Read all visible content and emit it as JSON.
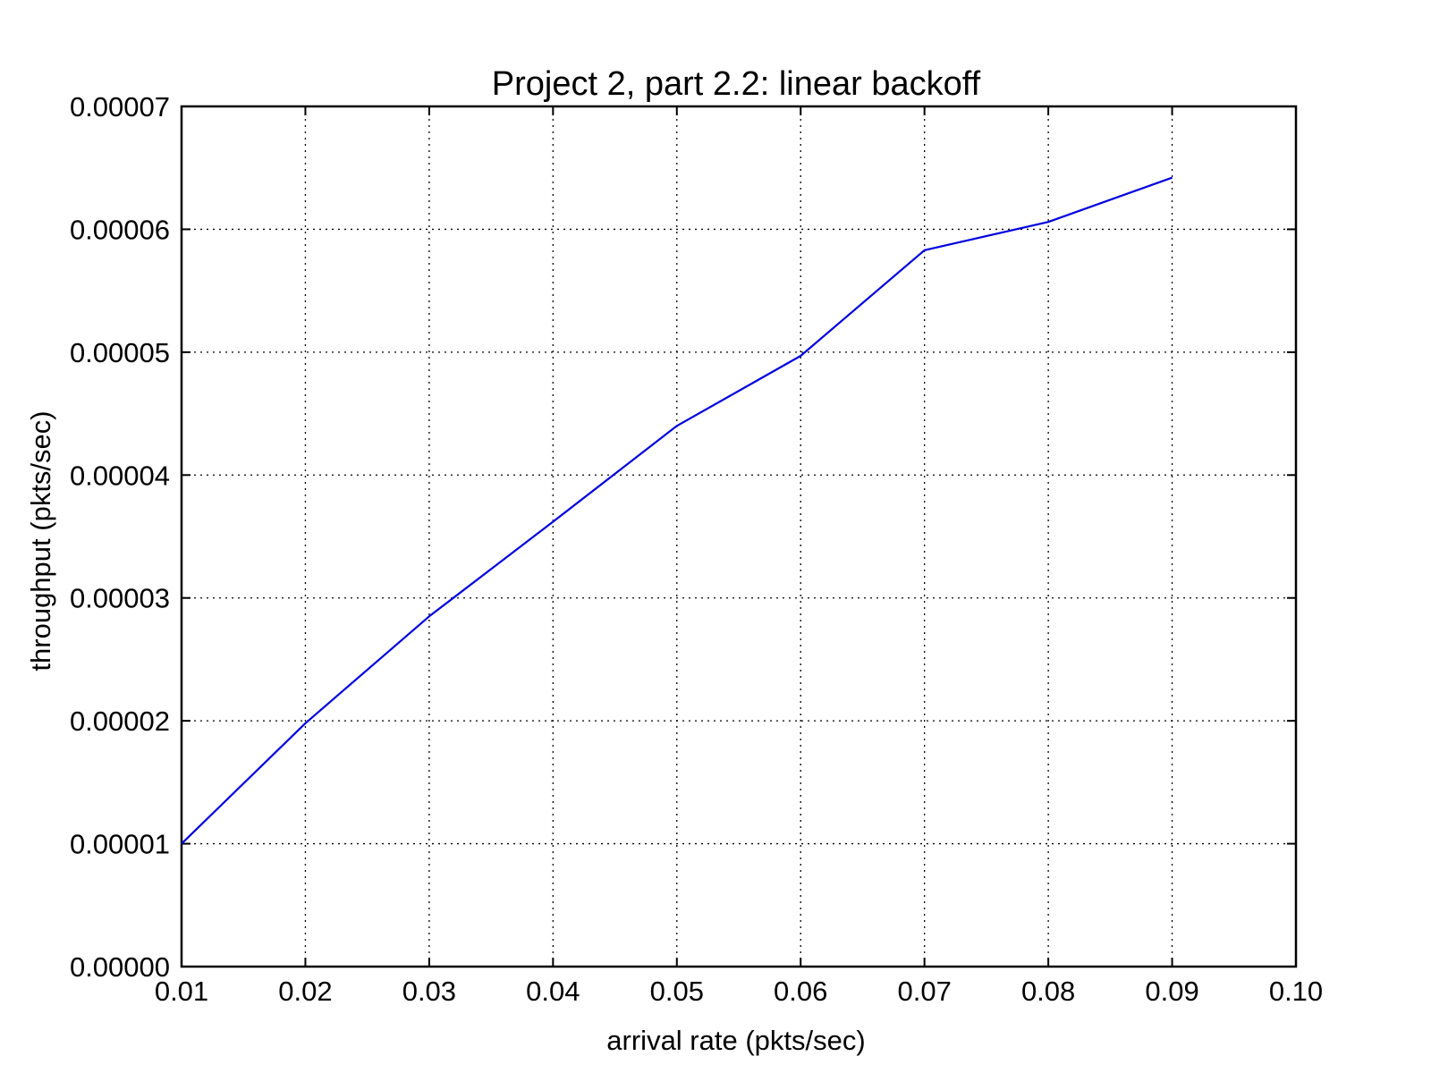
{
  "chart_data": {
    "type": "line",
    "title": "Project 2, part 2.2: linear backoff",
    "xlabel": "arrival rate (pkts/sec)",
    "ylabel": "throughput (pkts/sec)",
    "xlim": [
      0.01,
      0.1
    ],
    "ylim": [
      0.0,
      7e-05
    ],
    "x_ticks": [
      "0.01",
      "0.02",
      "0.03",
      "0.04",
      "0.05",
      "0.06",
      "0.07",
      "0.08",
      "0.09",
      "0.10"
    ],
    "y_ticks": [
      "0.00000",
      "0.00001",
      "0.00002",
      "0.00003",
      "0.00004",
      "0.00005",
      "0.00006",
      "0.00007"
    ],
    "grid": true,
    "line_color": "#0000dd",
    "series": [
      {
        "x": [
          0.01,
          0.02,
          0.03,
          0.04,
          0.05,
          0.06,
          0.07,
          0.08,
          0.09
        ],
        "values": [
          1e-05,
          1.98e-05,
          2.85e-05,
          3.62e-05,
          4.4e-05,
          4.97e-05,
          5.83e-05,
          6.06e-05,
          6.42e-05
        ]
      }
    ]
  }
}
